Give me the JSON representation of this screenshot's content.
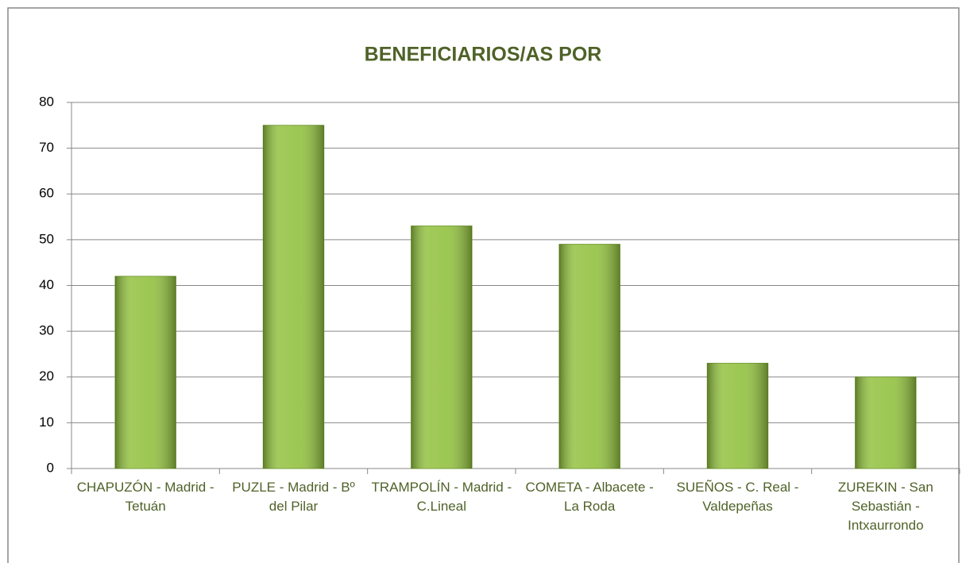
{
  "chart_data": {
    "type": "bar",
    "title": "BENEFICIARIOS/AS POR",
    "categories": [
      "CHAPUZÓN - Madrid - Tetuán",
      "PUZLE - Madrid - Bº del Pilar",
      "TRAMPOLÍN - Madrid - C.Lineal",
      "COMETA - Albacete - La Roda",
      "SUEÑOS - C. Real - Valdepeñas",
      "ZUREKIN - San Sebastián - Intxaurrondo"
    ],
    "values": [
      42,
      75,
      53,
      49,
      23,
      20
    ],
    "color": "#92c140",
    "ylim": [
      0,
      80
    ],
    "yticks": [
      0,
      10,
      20,
      30,
      40,
      50,
      60,
      70,
      80
    ],
    "grid": true
  }
}
